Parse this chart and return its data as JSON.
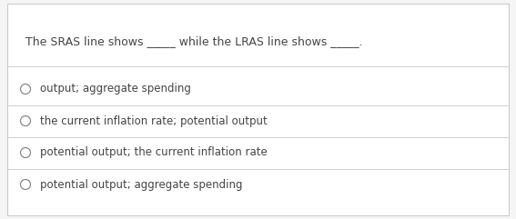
{
  "background_color": "#f5f5f5",
  "card_color": "#ffffff",
  "question_parts": [
    "The SRAS line shows ",
    "_____ ",
    "while the LRAS line shows ",
    "_____."
  ],
  "options": [
    "output; aggregate spending",
    "the current inflation rate; potential output",
    "potential output; the current inflation rate",
    "potential output; aggregate spending"
  ],
  "question_fontsize": 9.0,
  "option_fontsize": 8.5,
  "text_color": "#444444",
  "line_color": "#d0d0d0",
  "circle_color": "#888888",
  "border_color": "#cccccc"
}
